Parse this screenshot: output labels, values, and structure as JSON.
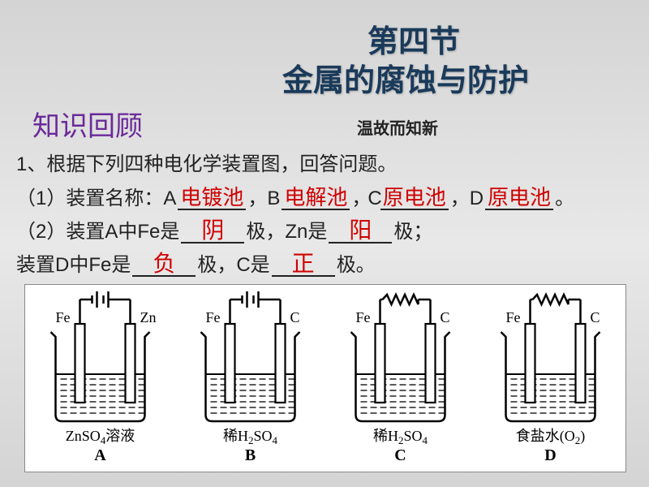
{
  "title_line1": "第四节",
  "title_line2": "金属的腐蚀与防护",
  "review_heading": "知识回顾",
  "subtitle": "温故而知新",
  "q1_intro": "1、根据下列四种电化学装置图，回答问题。",
  "q1_1_prefix": "（1）装置名称：A",
  "q1_1_b": "，B",
  "q1_1_c": "，C",
  "q1_1_d": "，D",
  "q1_1_end": "。",
  "ans_A": "电镀池",
  "ans_B": "电解池",
  "ans_C": "原电池",
  "ans_D": "原电池",
  "q1_2_prefix": "（2）装置A中Fe是",
  "q1_2_mid1": "极，Zn是",
  "q1_2_mid2": "极；",
  "q1_2_line2a": "装置D中Fe是",
  "q1_2_line2b": "极，C是",
  "q1_2_line2c": "极。",
  "ans_yin": "阴",
  "ans_yang": "阳",
  "ans_fu": "负",
  "ans_zheng": "正",
  "diagrams": [
    {
      "left_el": "Fe",
      "right_el": "Zn",
      "sol_pre": "ZnSO",
      "sol_sub": "4",
      "sol_post": "溶液",
      "label": "A",
      "type": "battery"
    },
    {
      "left_el": "Fe",
      "right_el": "C",
      "sol_pre": "稀H",
      "sol_sub": "2",
      "sol_mid": "SO",
      "sol_sub2": "4",
      "sol_post": "",
      "label": "B",
      "type": "battery"
    },
    {
      "left_el": "Fe",
      "right_el": "C",
      "sol_pre": "稀H",
      "sol_sub": "2",
      "sol_mid": "SO",
      "sol_sub2": "4",
      "sol_post": "",
      "label": "C",
      "type": "resistor"
    },
    {
      "left_el": "Fe",
      "right_el": "C",
      "sol_pre": "食盐水(O",
      "sol_sub": "2",
      "sol_post": ")",
      "label": "D",
      "type": "resistor"
    }
  ]
}
